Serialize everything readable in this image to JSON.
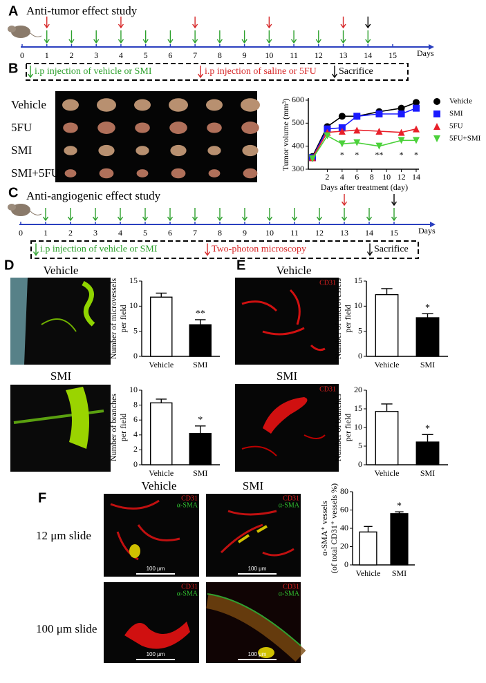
{
  "panels": {
    "A": {
      "label": "A",
      "title": "Anti-tumor effect study",
      "days": [
        0,
        1,
        2,
        3,
        4,
        5,
        6,
        7,
        8,
        9,
        10,
        11,
        12,
        13,
        14,
        15
      ],
      "unit": "Days",
      "arrows": [
        {
          "color": "#2ca02c",
          "days": [
            1,
            2,
            3,
            4,
            5,
            6,
            7,
            8,
            9,
            10,
            11,
            12,
            13,
            14
          ]
        },
        {
          "color": "#d62728",
          "days": [
            1,
            4,
            7,
            10,
            13
          ]
        },
        {
          "color": "#000000",
          "days": [
            14
          ]
        }
      ],
      "legend": [
        {
          "text": "i.p injection of vehicle or SMI",
          "color": "#2ca02c"
        },
        {
          "text": "i.p injection of saline or 5FU",
          "color": "#d62728"
        },
        {
          "text": "Sacrifice",
          "color": "#000000"
        }
      ]
    },
    "B": {
      "label": "B",
      "rows": [
        "Vehicle",
        "5FU",
        "SMI",
        "SMI+5FU"
      ]
    },
    "C": {
      "label": "C",
      "title": "Anti-angiogenic effect study",
      "days": [
        0,
        1,
        2,
        3,
        4,
        5,
        6,
        7,
        8,
        9,
        10,
        11,
        12,
        13,
        14,
        15
      ],
      "unit": "Days",
      "arrows": [
        {
          "color": "#2ca02c",
          "days": [
            1,
            2,
            3,
            4,
            5,
            6,
            7,
            8,
            9,
            10,
            11,
            12,
            13,
            14,
            15
          ]
        },
        {
          "color": "#d62728",
          "days": [
            13
          ]
        },
        {
          "color": "#000000",
          "days": [
            15
          ]
        }
      ],
      "legend": [
        {
          "text": "i.p injection of vehicle or SMI",
          "color": "#2ca02c"
        },
        {
          "text": "Two-photon microscopy",
          "color": "#d62728"
        },
        {
          "text": "Sacrifice",
          "color": "#000000"
        }
      ]
    },
    "D": {
      "label": "D",
      "photos": [
        "Vehicle",
        "SMI"
      ]
    },
    "E": {
      "label": "E",
      "photos": [
        "Vehicle",
        "SMI"
      ],
      "stain": "CD31"
    },
    "F": {
      "label": "F",
      "columns": [
        "Vehicle",
        "SMI"
      ],
      "rows": [
        "12 μm slide",
        "100 μm slide"
      ],
      "stains": [
        "CD31",
        "α-SMA"
      ],
      "scale": "100 μm"
    }
  },
  "chart_data": [
    {
      "type": "line",
      "ylabel": "Tumor volume (mm³)",
      "xlabel": "Days after treatment (day)",
      "x": [
        0,
        2,
        4,
        6,
        9,
        12,
        14
      ],
      "xlim": [
        0,
        14
      ],
      "xticks": [
        2,
        4,
        6,
        8,
        10,
        12,
        14
      ],
      "ylim": [
        300,
        600
      ],
      "yticks": [
        300,
        400,
        500,
        600
      ],
      "series": [
        {
          "name": "Vehicle",
          "color": "#000000",
          "marker": "circle",
          "values": [
            355,
            485,
            530,
            530,
            550,
            565,
            590
          ]
        },
        {
          "name": "SMI",
          "color": "#1a1aff",
          "marker": "square",
          "values": [
            350,
            475,
            480,
            530,
            540,
            540,
            565
          ]
        },
        {
          "name": "5FU",
          "color": "#e8202a",
          "marker": "triangle-up",
          "values": [
            350,
            460,
            465,
            470,
            465,
            460,
            475
          ]
        },
        {
          "name": "5FU+SMI",
          "color": "#4cd13b",
          "marker": "triangle-down",
          "values": [
            345,
            445,
            410,
            415,
            400,
            425,
            425
          ]
        }
      ],
      "annotations": [
        {
          "x": 4,
          "text": "*"
        },
        {
          "x": 6,
          "text": "*"
        },
        {
          "x": 9,
          "text": "**"
        },
        {
          "x": 12,
          "text": "*"
        },
        {
          "x": 14,
          "text": "*"
        }
      ]
    },
    {
      "type": "bar",
      "ylabel": [
        "Number of microvessels",
        "per field"
      ],
      "categories": [
        "Vehicle",
        "SMI"
      ],
      "values": [
        11.8,
        6.3
      ],
      "errors": [
        0.8,
        1.0
      ],
      "colors": [
        "#ffffff",
        "#000000"
      ],
      "ylim": [
        0,
        15
      ],
      "yticks": [
        0,
        5,
        10,
        15
      ],
      "annotation": "**"
    },
    {
      "type": "bar",
      "ylabel": [
        "Number of branches",
        "per field"
      ],
      "categories": [
        "Vehicle",
        "SMI"
      ],
      "values": [
        8.3,
        4.2
      ],
      "errors": [
        0.5,
        1.0
      ],
      "colors": [
        "#ffffff",
        "#000000"
      ],
      "ylim": [
        0,
        10
      ],
      "yticks": [
        0,
        2,
        4,
        6,
        8,
        10
      ],
      "annotation": "*"
    },
    {
      "type": "bar",
      "ylabel": [
        "Number of microvessels",
        "per field"
      ],
      "categories": [
        "Vehicle",
        "SMI"
      ],
      "values": [
        12.3,
        7.7
      ],
      "errors": [
        1.2,
        0.8
      ],
      "colors": [
        "#ffffff",
        "#000000"
      ],
      "ylim": [
        0,
        15
      ],
      "yticks": [
        0,
        5,
        10,
        15
      ],
      "annotation": "*"
    },
    {
      "type": "bar",
      "ylabel": [
        "Number of branches",
        "per field"
      ],
      "categories": [
        "Vehicle",
        "SMI"
      ],
      "values": [
        14.3,
        6.1
      ],
      "errors": [
        2.0,
        2.0
      ],
      "colors": [
        "#ffffff",
        "#000000"
      ],
      "ylim": [
        0,
        20
      ],
      "yticks": [
        0,
        5,
        10,
        15,
        20
      ],
      "annotation": "*"
    },
    {
      "type": "bar",
      "ylabel": [
        "α-SMA⁺ vessels",
        "(of total CD31⁺ vessels %)"
      ],
      "categories": [
        "Vehicle",
        "SMI"
      ],
      "values": [
        36,
        56
      ],
      "errors": [
        6,
        2
      ],
      "colors": [
        "#ffffff",
        "#000000"
      ],
      "ylim": [
        0,
        80
      ],
      "yticks": [
        0,
        20,
        40,
        60,
        80
      ],
      "annotation": "*"
    }
  ]
}
